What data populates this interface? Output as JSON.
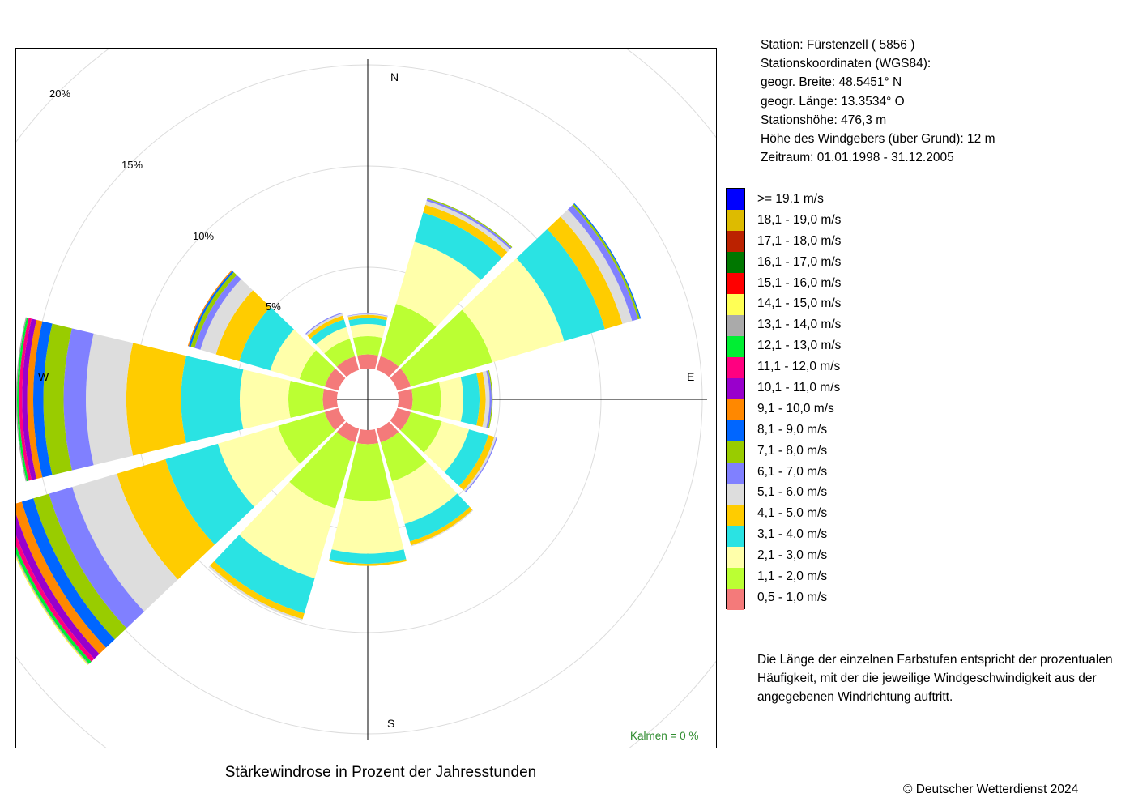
{
  "station_info": {
    "station": "Station:  Fürstenzell  ( 5856 )",
    "coords_heading": "Stationskoordinaten (WGS84):",
    "latitude": "geogr. Breite: 48.5451° N",
    "longitude": "geogr. Länge: 13.3534° O",
    "elevation": "Stationshöhe: 476,3 m",
    "sensor_height": "Höhe des Windgebers (über Grund): 12 m",
    "period": "Zeitraum: 01.01.1998 - 31.12.2005"
  },
  "note": "Die Länge der einzelnen Farbstufen entspricht der prozentualen Häufigkeit, mit der die jeweilige Windgeschwindigkeit aus der angegebenen Windrichtung auftritt.",
  "copyright": "© Deutscher Wetterdienst  2024",
  "chart_data": {
    "type": "wind-rose",
    "title": "Stärkewindrose in Prozent der Jahresstunden",
    "calm_label": "Kalmen  =  0 %",
    "compass_labels": [
      "N",
      "E",
      "S",
      "W"
    ],
    "radial_ticks": [
      5,
      10,
      15,
      20
    ],
    "radial_tick_labels": [
      "5%",
      "10%",
      "15%",
      "20%"
    ],
    "radial_max": 20,
    "grid": true,
    "legend_placement": "right",
    "directions_deg": [
      0,
      30,
      60,
      90,
      120,
      150,
      180,
      210,
      240,
      270,
      300,
      330
    ],
    "classes": [
      {
        "label": "0,5 - 1,0 m/s",
        "color": "#f47a7a"
      },
      {
        "label": "1,1 - 2,0 m/s",
        "color": "#bbff33"
      },
      {
        "label": "2,1 - 3,0 m/s",
        "color": "#ffffaa"
      },
      {
        "label": "3,1 - 4,0 m/s",
        "color": "#2ae3e3"
      },
      {
        "label": "4,1 - 5,0 m/s",
        "color": "#ffcc00"
      },
      {
        "label": "5,1 - 6,0 m/s",
        "color": "#dddddd"
      },
      {
        "label": "6,1 - 7,0 m/s",
        "color": "#8080ff"
      },
      {
        "label": "7,1 - 8,0 m/s",
        "color": "#99cc00"
      },
      {
        "label": "8,1 - 9,0 m/s",
        "color": "#0066ff"
      },
      {
        "label": "9,1 - 10,0 m/s",
        "color": "#ff8800"
      },
      {
        "label": "10,1 - 11,0 m/s",
        "color": "#9900cc"
      },
      {
        "label": "11,1 - 12,0 m/s",
        "color": "#ff0080"
      },
      {
        "label": "12,1 - 13,0 m/s",
        "color": "#00ee33"
      },
      {
        "label": "13,1 - 14,0 m/s",
        "color": "#aaaaaa"
      },
      {
        "label": "14,1 - 15,0 m/s",
        "color": "#ffff55"
      },
      {
        "label": "15,1 - 16,0 m/s",
        "color": "#ff0000"
      },
      {
        "label": "16,1 - 17,0 m/s",
        "color": "#007700"
      },
      {
        "label": "17,1 - 18,0 m/s",
        "color": "#bb2200"
      },
      {
        "label": "18,1 - 19,0 m/s",
        "color": "#ddbb00"
      },
      {
        "label": ">= 19.1 m/s",
        "color": "#0000ff"
      }
    ],
    "series": [
      {
        "direction_deg": 0,
        "values": [
          0.7,
          0.9,
          0.6,
          0.3,
          0.15,
          0.05,
          0.02,
          0,
          0,
          0,
          0,
          0,
          0,
          0,
          0,
          0,
          0,
          0,
          0,
          0
        ]
      },
      {
        "direction_deg": 30,
        "values": [
          0.7,
          2.7,
          3.2,
          1.5,
          0.4,
          0.2,
          0.1,
          0.05,
          0,
          0,
          0,
          0,
          0,
          0,
          0,
          0,
          0,
          0,
          0,
          0
        ]
      },
      {
        "direction_deg": 60,
        "values": [
          0.7,
          4.2,
          3.7,
          2.1,
          0.9,
          0.5,
          0.3,
          0.1,
          0.05,
          0,
          0,
          0,
          0,
          0,
          0,
          0,
          0,
          0,
          0,
          0
        ]
      },
      {
        "direction_deg": 90,
        "values": [
          0.7,
          1.4,
          1.1,
          0.8,
          0.3,
          0.2,
          0.1,
          0.05,
          0,
          0,
          0,
          0,
          0,
          0,
          0,
          0,
          0,
          0,
          0,
          0
        ]
      },
      {
        "direction_deg": 120,
        "values": [
          0.7,
          1.6,
          1.4,
          1.0,
          0.3,
          0.1,
          0.05,
          0,
          0,
          0,
          0,
          0,
          0,
          0,
          0,
          0,
          0,
          0,
          0,
          0
        ]
      },
      {
        "direction_deg": 150,
        "values": [
          0.7,
          2.0,
          2.2,
          0.9,
          0.2,
          0.05,
          0,
          0,
          0,
          0,
          0,
          0,
          0,
          0,
          0,
          0,
          0,
          0,
          0,
          0
        ]
      },
      {
        "direction_deg": 180,
        "values": [
          0.7,
          2.8,
          2.6,
          0.5,
          0.1,
          0,
          0,
          0,
          0,
          0,
          0,
          0,
          0,
          0,
          0,
          0,
          0,
          0,
          0,
          0
        ]
      },
      {
        "direction_deg": 210,
        "values": [
          0.7,
          3.4,
          3.6,
          1.8,
          0.3,
          0.1,
          0,
          0,
          0,
          0,
          0,
          0,
          0,
          0,
          0,
          0,
          0,
          0,
          0,
          0
        ]
      },
      {
        "direction_deg": 240,
        "values": [
          0.7,
          2.4,
          3.1,
          2.7,
          2.5,
          2.3,
          1.2,
          0.8,
          0.6,
          0.45,
          0.35,
          0.2,
          0.15,
          0.05,
          0.05,
          0,
          0,
          0,
          0,
          0
        ]
      },
      {
        "direction_deg": 270,
        "values": [
          0.7,
          1.7,
          2.4,
          2.9,
          2.7,
          2.0,
          1.1,
          1.0,
          0.5,
          0.3,
          0.25,
          0.15,
          0.1,
          0.05,
          0,
          0,
          0,
          0,
          0,
          0
        ]
      },
      {
        "direction_deg": 300,
        "values": [
          0.7,
          1.3,
          1.5,
          1.6,
          1.2,
          0.8,
          0.3,
          0.2,
          0.1,
          0.05,
          0,
          0,
          0,
          0,
          0,
          0,
          0,
          0,
          0,
          0
        ]
      },
      {
        "direction_deg": 330,
        "values": [
          0.7,
          0.9,
          0.6,
          0.4,
          0.2,
          0.1,
          0.05,
          0,
          0,
          0,
          0,
          0,
          0,
          0,
          0,
          0,
          0,
          0,
          0,
          0
        ]
      }
    ]
  }
}
